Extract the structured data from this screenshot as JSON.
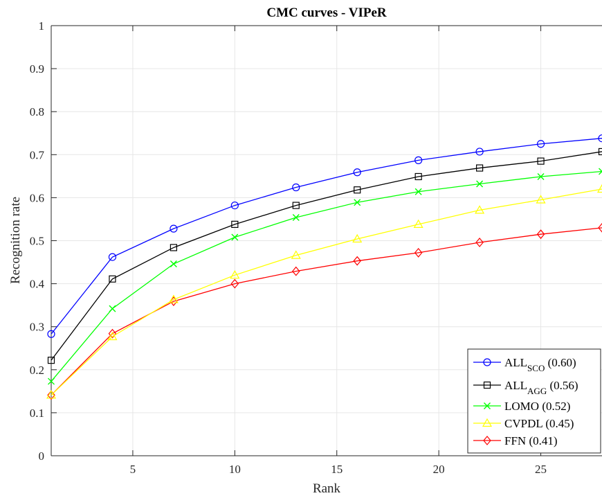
{
  "chart_data": {
    "type": "line",
    "title": "CMC curves - VIPeR",
    "xlabel": "Rank",
    "ylabel": "Recognition rate",
    "xlim": [
      1,
      28
    ],
    "ylim": [
      0,
      1
    ],
    "xticks": [
      5,
      10,
      15,
      20,
      25
    ],
    "yticks": [
      0,
      0.1,
      0.2,
      0.3,
      0.4,
      0.5,
      0.6,
      0.7,
      0.8,
      0.9,
      1
    ],
    "grid": true,
    "legend_position": "bottom-right",
    "x": [
      1,
      4,
      7,
      10,
      13,
      16,
      19,
      22,
      25,
      28
    ],
    "series": [
      {
        "name": "ALL",
        "sub": "SCO",
        "score": " (0.60)",
        "color": "#0000ff",
        "marker": "circle",
        "values": [
          0.283,
          0.462,
          0.528,
          0.582,
          0.624,
          0.659,
          0.687,
          0.707,
          0.725,
          0.738
        ]
      },
      {
        "name": "ALL",
        "sub": "AGG",
        "score": " (0.56)",
        "color": "#000000",
        "marker": "square",
        "values": [
          0.222,
          0.411,
          0.484,
          0.538,
          0.582,
          0.618,
          0.649,
          0.669,
          0.685,
          0.707
        ]
      },
      {
        "name": "LOMO",
        "sub": "",
        "score": " (0.52)",
        "color": "#00ff00",
        "marker": "x",
        "values": [
          0.173,
          0.342,
          0.446,
          0.508,
          0.554,
          0.589,
          0.614,
          0.632,
          0.649,
          0.661
        ]
      },
      {
        "name": "CVPDL",
        "sub": "",
        "score": " (0.45)",
        "color": "#ffff00",
        "marker": "triangle",
        "values": [
          0.141,
          0.277,
          0.363,
          0.42,
          0.466,
          0.504,
          0.538,
          0.571,
          0.595,
          0.62
        ]
      },
      {
        "name": "FFN",
        "sub": "",
        "score": " (0.41)",
        "color": "#ff0000",
        "marker": "diamond",
        "values": [
          0.141,
          0.284,
          0.359,
          0.4,
          0.429,
          0.453,
          0.472,
          0.496,
          0.515,
          0.53
        ]
      }
    ]
  }
}
